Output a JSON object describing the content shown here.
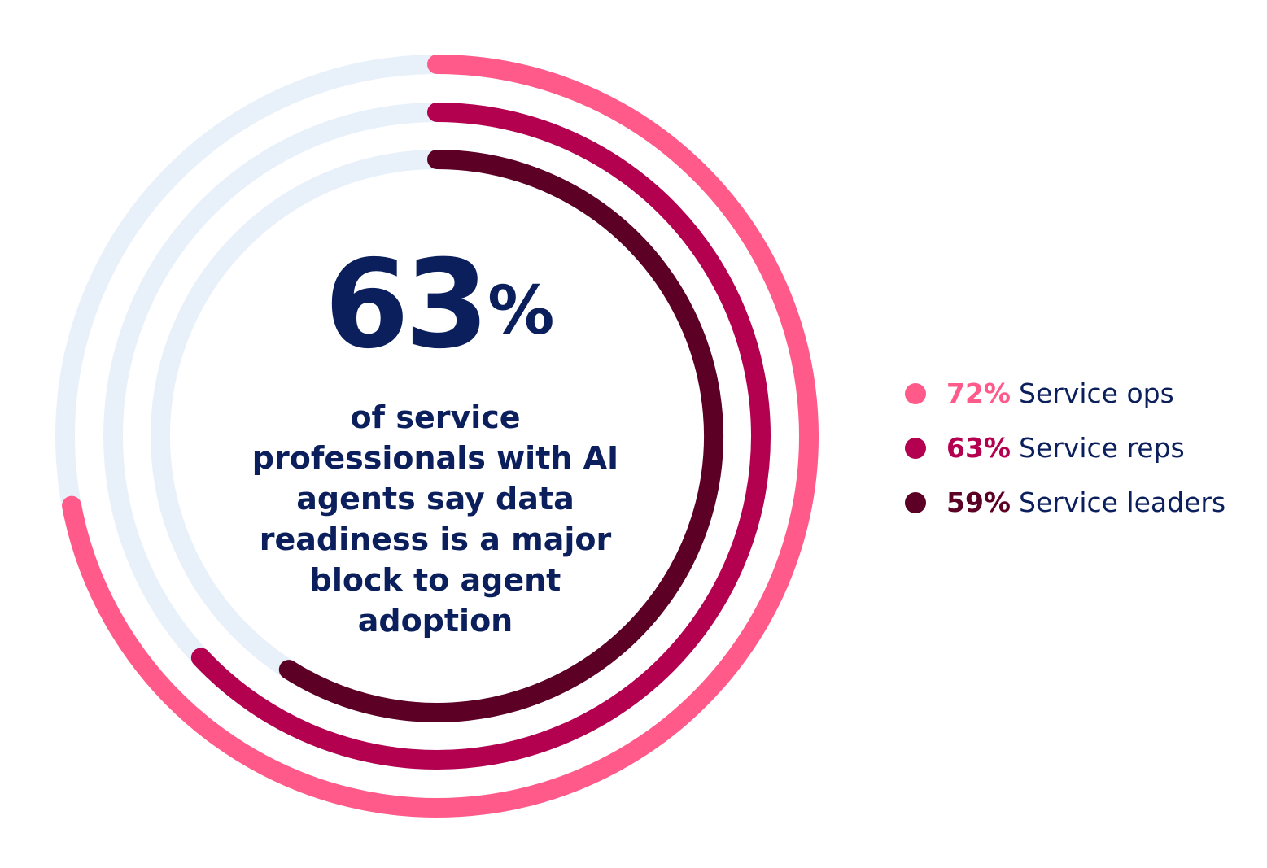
{
  "headline": {
    "value": "63",
    "unit": "%",
    "caption": "of service professionals with AI agents say data readiness is a major block to agent adoption"
  },
  "chart_data": {
    "type": "radial-bar",
    "track_color": "#e8f1fa",
    "series": [
      {
        "name": "Service ops",
        "label": "72%",
        "value": 72,
        "color": "#ff5a8a"
      },
      {
        "name": "Service reps",
        "label": "63%",
        "value": 63,
        "color": "#b3004f"
      },
      {
        "name": "Service leaders",
        "label": "59%",
        "value": 59,
        "color": "#5c0026"
      }
    ]
  }
}
